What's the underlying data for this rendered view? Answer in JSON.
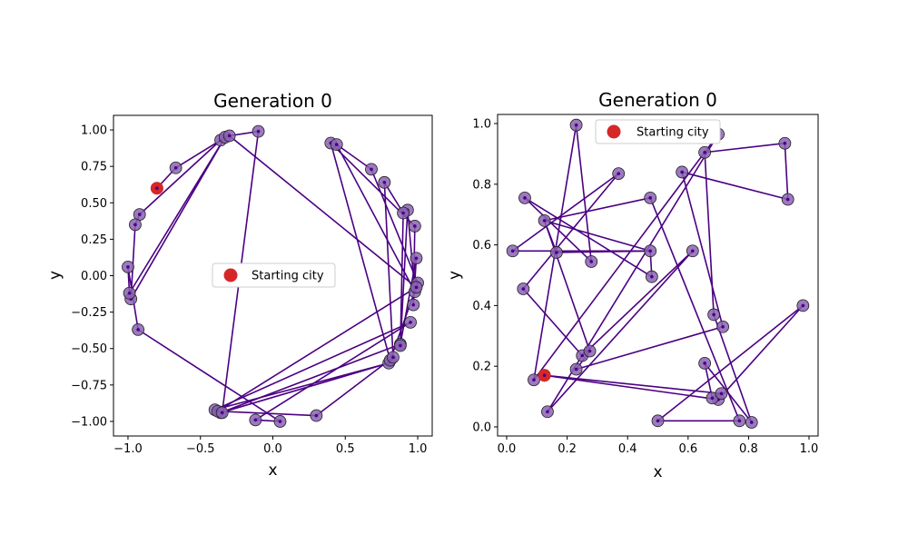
{
  "chart_data": [
    {
      "type": "line",
      "title": "Generation 0",
      "xlabel": "x",
      "ylabel": "y",
      "xlim": [
        -1.1,
        1.1
      ],
      "ylim": [
        -1.1,
        1.1
      ],
      "xticks": [
        -1.0,
        -0.5,
        0.0,
        0.5,
        1.0
      ],
      "xtick_labels": [
        "−1.0",
        "−0.5",
        "0.0",
        "0.5",
        "1.0"
      ],
      "yticks": [
        -1.0,
        -0.75,
        -0.5,
        -0.25,
        0.0,
        0.25,
        0.5,
        0.75,
        1.0
      ],
      "ytick_labels": [
        "−1.00",
        "−0.75",
        "−0.50",
        "−0.25",
        "0.00",
        "0.25",
        "0.50",
        "0.75",
        "1.00"
      ],
      "grid": false,
      "legend": {
        "placement": "center",
        "entries": [
          "Starting city"
        ]
      },
      "start_city": {
        "label": "Starting city",
        "x": -0.8,
        "y": 0.6,
        "color": "#d62728"
      },
      "route_color": "#4b0082",
      "city_color": "#8a63b3",
      "route": [
        [
          -0.8,
          0.6
        ],
        [
          -0.67,
          0.74
        ],
        [
          -0.36,
          0.93
        ],
        [
          -0.92,
          0.42
        ],
        [
          -0.95,
          0.35
        ],
        [
          -0.98,
          -0.16
        ],
        [
          -0.33,
          0.95
        ],
        [
          -0.99,
          -0.12
        ],
        [
          -1.0,
          0.06
        ],
        [
          -0.93,
          -0.37
        ],
        [
          0.05,
          -1.0
        ],
        [
          -0.12,
          -0.99
        ],
        [
          0.95,
          -0.32
        ],
        [
          -0.4,
          -0.92
        ],
        [
          0.8,
          -0.6
        ],
        [
          -0.36,
          -0.94
        ],
        [
          0.88,
          -0.47
        ],
        [
          0.99,
          0.12
        ],
        [
          0.97,
          -0.2
        ],
        [
          0.98,
          0.34
        ],
        [
          0.4,
          0.91
        ],
        [
          0.81,
          -0.58
        ],
        [
          1.0,
          -0.05
        ],
        [
          0.68,
          0.73
        ],
        [
          0.44,
          0.9
        ],
        [
          0.98,
          -0.11
        ],
        [
          0.93,
          0.45
        ],
        [
          0.88,
          -0.48
        ],
        [
          0.9,
          0.43
        ],
        [
          0.77,
          0.64
        ],
        [
          0.83,
          -0.56
        ],
        [
          0.3,
          -0.96
        ],
        [
          -0.38,
          -0.93
        ],
        [
          0.99,
          -0.08
        ],
        [
          -0.3,
          0.96
        ],
        [
          -0.1,
          0.99
        ],
        [
          -0.35,
          -0.94
        ]
      ]
    },
    {
      "type": "line",
      "title": "Generation 0",
      "xlabel": "x",
      "ylabel": "y",
      "xlim": [
        -0.03,
        1.03
      ],
      "ylim": [
        -0.03,
        1.03
      ],
      "xticks": [
        0.0,
        0.2,
        0.4,
        0.6,
        0.8,
        1.0
      ],
      "xtick_labels": [
        "0.0",
        "0.2",
        "0.4",
        "0.6",
        "0.8",
        "1.0"
      ],
      "yticks": [
        0.0,
        0.2,
        0.4,
        0.6,
        0.8,
        1.0
      ],
      "ytick_labels": [
        "0.0",
        "0.2",
        "0.4",
        "0.6",
        "0.8",
        "1.0"
      ],
      "grid": false,
      "legend": {
        "placement": "upper center",
        "entries": [
          "Starting city"
        ]
      },
      "start_city": {
        "label": "Starting city",
        "x": 0.125,
        "y": 0.17,
        "color": "#d62728"
      },
      "route_color": "#4b0082",
      "city_color": "#8a63b3",
      "route": [
        [
          0.125,
          0.17
        ],
        [
          0.7,
          0.09
        ],
        [
          0.98,
          0.4
        ],
        [
          0.5,
          0.02
        ],
        [
          0.77,
          0.02
        ],
        [
          0.475,
          0.755
        ],
        [
          0.125,
          0.68
        ],
        [
          0.165,
          0.575
        ],
        [
          0.475,
          0.58
        ],
        [
          0.48,
          0.495
        ],
        [
          0.06,
          0.755
        ],
        [
          0.28,
          0.545
        ],
        [
          0.23,
          0.995
        ],
        [
          0.09,
          0.155
        ],
        [
          0.7,
          0.965
        ],
        [
          0.135,
          0.05
        ],
        [
          0.615,
          0.58
        ],
        [
          0.25,
          0.235
        ],
        [
          0.055,
          0.455
        ],
        [
          0.37,
          0.835
        ],
        [
          0.02,
          0.58
        ],
        [
          0.475,
          0.58
        ],
        [
          0.125,
          0.68
        ],
        [
          0.275,
          0.25
        ],
        [
          0.23,
          0.19
        ],
        [
          0.715,
          0.33
        ],
        [
          0.58,
          0.84
        ],
        [
          0.93,
          0.75
        ],
        [
          0.92,
          0.935
        ],
        [
          0.655,
          0.905
        ],
        [
          0.685,
          0.37
        ],
        [
          0.81,
          0.015
        ],
        [
          0.655,
          0.21
        ],
        [
          0.68,
          0.095
        ],
        [
          0.71,
          0.11
        ],
        [
          0.125,
          0.17
        ]
      ]
    }
  ]
}
